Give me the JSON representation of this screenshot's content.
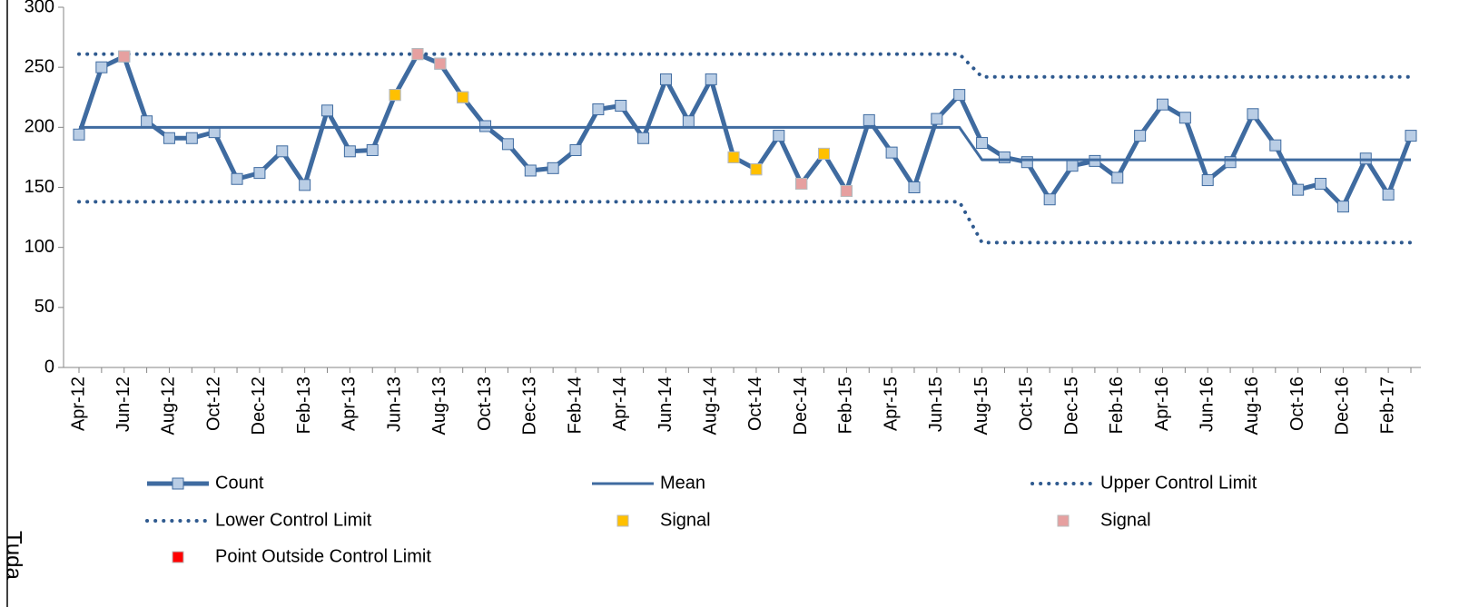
{
  "chart_data": {
    "type": "line",
    "annotation": "Tuda",
    "categories": [
      "Apr-12",
      null,
      "Jun-12",
      null,
      "Aug-12",
      null,
      "Oct-12",
      null,
      "Dec-12",
      null,
      "Feb-13",
      null,
      "Apr-13",
      null,
      "Jun-13",
      null,
      "Aug-13",
      null,
      "Oct-13",
      null,
      "Dec-13",
      null,
      "Feb-14",
      null,
      "Apr-14",
      null,
      "Jun-14",
      null,
      "Aug-14",
      null,
      "Oct-14",
      null,
      "Dec-14",
      null,
      "Feb-15",
      null,
      "Apr-15",
      null,
      "Jun-15",
      null,
      "Aug-15",
      null,
      "Oct-15",
      null,
      "Dec-15",
      null,
      "Feb-16",
      null,
      "Apr-16",
      null,
      "Jun-16",
      null,
      "Aug-16",
      null,
      "Oct-16",
      null,
      "Dec-16",
      null,
      "Feb-17",
      null
    ],
    "ylim": [
      0,
      300
    ],
    "yticks": [
      0,
      50,
      100,
      150,
      200,
      250,
      300
    ],
    "series": [
      {
        "name": "Count",
        "style": "line-marker",
        "color": "#3f6ba0",
        "marker_color": "#b9cde5",
        "values": [
          194,
          250,
          259,
          205,
          191,
          191,
          196,
          157,
          162,
          180,
          152,
          214,
          180,
          181,
          227,
          261,
          253,
          225,
          201,
          186,
          164,
          166,
          181,
          215,
          218,
          191,
          240,
          205,
          240,
          175,
          165,
          193,
          153,
          178,
          147,
          206,
          179,
          150,
          207,
          227,
          187,
          175,
          171,
          140,
          168,
          172,
          158,
          193,
          219,
          208,
          156,
          171,
          211,
          185,
          148,
          153,
          134,
          174,
          144,
          193
        ]
      },
      {
        "name": "Mean",
        "style": "line",
        "color": "#3f6ba0",
        "values": [
          200,
          200,
          200,
          200,
          200,
          200,
          200,
          200,
          200,
          200,
          200,
          200,
          200,
          200,
          200,
          200,
          200,
          200,
          200,
          200,
          200,
          200,
          200,
          200,
          200,
          200,
          200,
          200,
          200,
          200,
          200,
          200,
          200,
          200,
          200,
          200,
          200,
          200,
          200,
          200,
          173,
          173,
          173,
          173,
          173,
          173,
          173,
          173,
          173,
          173,
          173,
          173,
          173,
          173,
          173,
          173,
          173,
          173,
          173,
          173
        ]
      },
      {
        "name": "Upper Control Limit",
        "style": "dotted",
        "color": "#2f5a8f",
        "values": [
          261,
          261,
          261,
          261,
          261,
          261,
          261,
          261,
          261,
          261,
          261,
          261,
          261,
          261,
          261,
          261,
          261,
          261,
          261,
          261,
          261,
          261,
          261,
          261,
          261,
          261,
          261,
          261,
          261,
          261,
          261,
          261,
          261,
          261,
          261,
          261,
          261,
          261,
          261,
          261,
          242,
          242,
          242,
          242,
          242,
          242,
          242,
          242,
          242,
          242,
          242,
          242,
          242,
          242,
          242,
          242,
          242,
          242,
          242,
          242
        ]
      },
      {
        "name": "Lower Control Limit",
        "style": "dotted",
        "color": "#2f5a8f",
        "values": [
          138,
          138,
          138,
          138,
          138,
          138,
          138,
          138,
          138,
          138,
          138,
          138,
          138,
          138,
          138,
          138,
          138,
          138,
          138,
          138,
          138,
          138,
          138,
          138,
          138,
          138,
          138,
          138,
          138,
          138,
          138,
          138,
          138,
          138,
          138,
          138,
          138,
          138,
          138,
          138,
          104,
          104,
          104,
          104,
          104,
          104,
          104,
          104,
          104,
          104,
          104,
          104,
          104,
          104,
          104,
          104,
          104,
          104,
          104,
          104
        ]
      },
      {
        "name": "Signal",
        "style": "marker",
        "color": "#ffc000",
        "values": [
          null,
          null,
          null,
          null,
          null,
          null,
          null,
          null,
          null,
          null,
          null,
          null,
          null,
          null,
          227,
          null,
          null,
          225,
          null,
          null,
          null,
          null,
          null,
          null,
          null,
          null,
          null,
          null,
          null,
          175,
          165,
          null,
          null,
          178,
          null,
          null,
          null,
          null,
          null,
          null,
          null,
          null,
          null,
          null,
          null,
          null,
          null,
          null,
          null,
          null,
          null,
          null,
          null,
          null,
          null,
          null,
          null,
          null,
          null,
          null
        ]
      },
      {
        "name": "Signal",
        "style": "marker",
        "color": "#e6a0a0",
        "values": [
          null,
          null,
          259,
          null,
          null,
          null,
          null,
          null,
          null,
          null,
          null,
          null,
          null,
          null,
          null,
          261,
          253,
          null,
          null,
          null,
          null,
          null,
          null,
          null,
          null,
          null,
          null,
          null,
          null,
          null,
          null,
          null,
          153,
          null,
          147,
          null,
          null,
          null,
          null,
          null,
          null,
          null,
          null,
          null,
          null,
          null,
          null,
          null,
          null,
          null,
          null,
          null,
          null,
          null,
          null,
          null,
          null,
          null,
          null,
          null
        ]
      },
      {
        "name": "Point Outside Control Limit",
        "style": "marker",
        "color": "#ff0000",
        "values": [
          null,
          null,
          null,
          null,
          null,
          null,
          null,
          null,
          null,
          null,
          null,
          null,
          null,
          null,
          null,
          null,
          null,
          null,
          null,
          null,
          null,
          null,
          null,
          null,
          null,
          null,
          null,
          null,
          null,
          null,
          null,
          null,
          null,
          null,
          null,
          null,
          null,
          null,
          null,
          null,
          null,
          null,
          null,
          null,
          null,
          null,
          null,
          null,
          null,
          null,
          null,
          null,
          null,
          null,
          null,
          null,
          null,
          null,
          null,
          null
        ]
      }
    ]
  }
}
